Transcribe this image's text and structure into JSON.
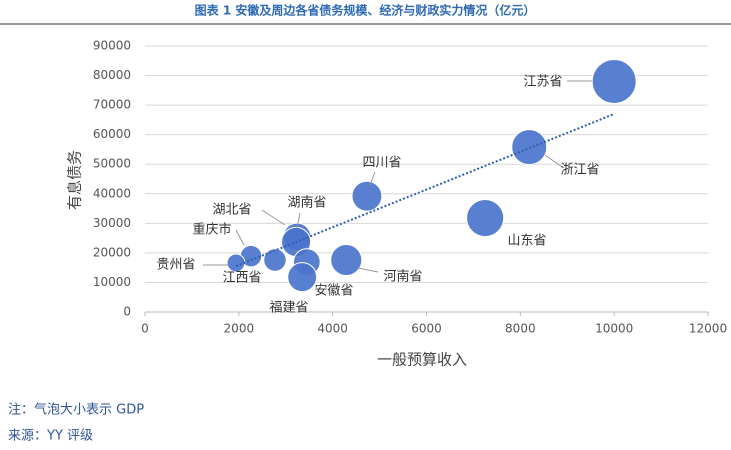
{
  "chart_data": {
    "type": "bubble",
    "title": "图表 1 安徽及周边各省债务规模、经济与财政实力情况（亿元）",
    "x_label": "一般预算收入",
    "y_label": "有息债务",
    "categories": [
      "江苏省",
      "浙江省",
      "山东省",
      "四川省",
      "湖南省",
      "湖北省",
      "河南省",
      "安徽省",
      "福建省",
      "重庆市",
      "江西省",
      "贵州省"
    ],
    "x": [
      10000,
      8190,
      7250,
      4730,
      3240,
      3220,
      4290,
      3450,
      3350,
      2260,
      2770,
      1940
    ],
    "values": [
      78000,
      55800,
      31800,
      39200,
      25400,
      23700,
      17600,
      16900,
      11800,
      18900,
      17600,
      16600
    ],
    "sizes": [
      122876,
      77715,
      87435,
      56750,
      48670,
      53735,
      61345,
      45045,
      53110,
      29129,
      32075,
      20165
    ],
    "color": "#4a74cc",
    "trendline": {
      "x": [
        1940,
        10000
      ],
      "values": [
        15500,
        67000
      ],
      "color": "#2f5fb3"
    },
    "xlim": [
      0,
      12000
    ],
    "xticks": [
      0,
      2000,
      4000,
      6000,
      8000,
      10000,
      12000
    ],
    "ylim": [
      0,
      90000
    ],
    "yticks": [
      0,
      10000,
      20000,
      30000,
      40000,
      50000,
      60000,
      70000,
      80000,
      90000
    ],
    "grid": true
  },
  "notes": [
    "注：气泡大小表示 GDP",
    "来源：YY 评级"
  ]
}
